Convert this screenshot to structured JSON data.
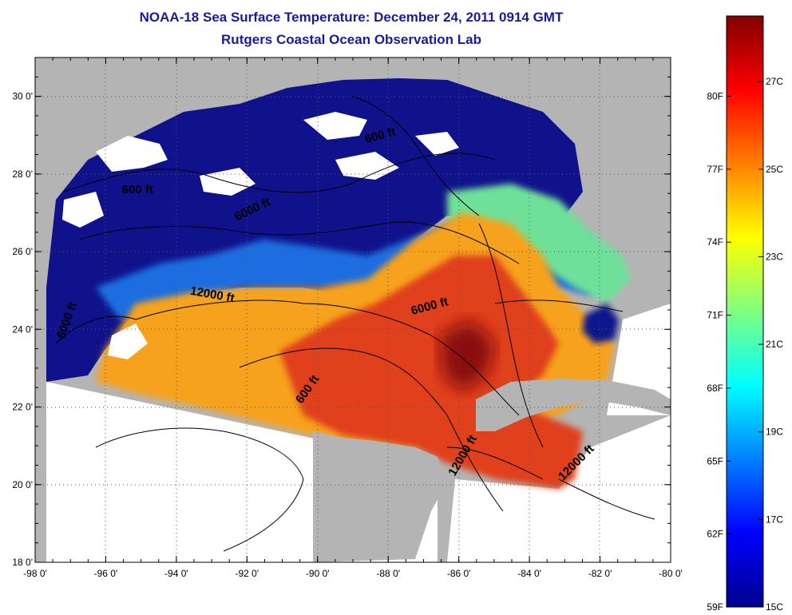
{
  "header": {
    "title": "NOAA-18 Sea Surface Temperature:  December 24, 2011 0914 GMT",
    "subtitle": "Rutgers Coastal Ocean Observation Lab"
  },
  "map": {
    "lon_range": [
      -98,
      -80
    ],
    "lat_range": [
      18,
      31
    ],
    "x_ticks": [
      "-98 0'",
      "-96 0'",
      "-94 0'",
      "-92 0'",
      "-90 0'",
      "-88 0'",
      "-86 0'",
      "-84 0'",
      "-82 0'",
      "-80 0'"
    ],
    "y_ticks": [
      "18 0'",
      "20 0'",
      "22 0'",
      "24 0'",
      "26 0'",
      "28 0'",
      "30 0'"
    ],
    "contour_labels": [
      {
        "text": "600 ft",
        "lon": -88.2,
        "lat": 28.9,
        "rot": -15
      },
      {
        "text": "600 ft",
        "lon": -95.1,
        "lat": 27.5,
        "rot": 0
      },
      {
        "text": "6000 ft",
        "lon": -91.8,
        "lat": 27.0,
        "rot": -25
      },
      {
        "text": "6000 ft",
        "lon": -97.0,
        "lat": 24.2,
        "rot": -70
      },
      {
        "text": "12000 ft",
        "lon": -93.0,
        "lat": 24.8,
        "rot": 10
      },
      {
        "text": "6000 ft",
        "lon": -86.8,
        "lat": 24.5,
        "rot": -15
      },
      {
        "text": "600 ft",
        "lon": -90.2,
        "lat": 22.4,
        "rot": -55
      },
      {
        "text": "12000 ft",
        "lon": -85.8,
        "lat": 20.7,
        "rot": -60
      },
      {
        "text": "12000 ft",
        "lon": -82.6,
        "lat": 20.5,
        "rot": -45
      }
    ],
    "colors": {
      "land": "#b4b4b4",
      "no_data": "#ffffff",
      "cold": "#10128c",
      "mid": "#f6a21c",
      "warm": "#e0401a",
      "hot": "#8a1010"
    }
  },
  "colorbar": {
    "min_c": 15,
    "max_c": 28.5,
    "f_labels": [
      "80F",
      "77F",
      "74F",
      "71F",
      "68F",
      "65F",
      "62F",
      "59F"
    ],
    "c_labels": [
      "27C",
      "25C",
      "23C",
      "21C",
      "19C",
      "17C",
      "15C"
    ]
  }
}
